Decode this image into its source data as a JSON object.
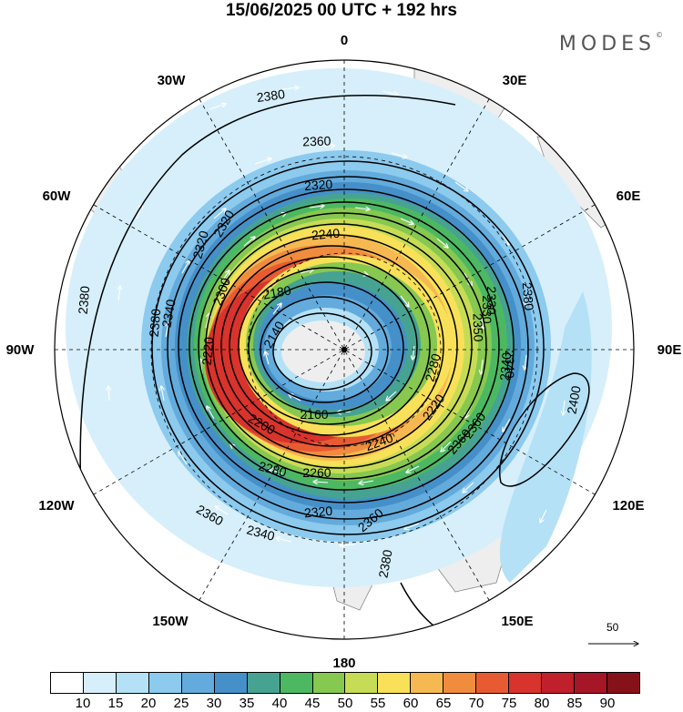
{
  "title": "15/06/2025  00 UTC  + 192 hrs",
  "brand": "MODES",
  "brand_mark": "©",
  "longitude_labels": {
    "n0": "0",
    "n30e": "30E",
    "n60e": "60E",
    "n90e": "90E",
    "n120e": "120E",
    "n150e": "150E",
    "n180": "180",
    "n150w": "150W",
    "n120w": "120W",
    "n90w": "90W",
    "n60w": "60W",
    "n30w": "30W"
  },
  "reference_vector": {
    "label": "50"
  },
  "contour_labels": [
    "2380",
    "2360",
    "2320",
    "2320",
    "2340",
    "2300",
    "2240",
    "2180",
    "2140",
    "2220",
    "2330",
    "2340",
    "2200",
    "2280",
    "2260",
    "2160",
    "2240",
    "2220",
    "2340",
    "2360",
    "2320",
    "2360",
    "2340",
    "2280",
    "2380",
    "2380",
    "2400",
    "2360",
    "2330",
    "2360",
    "2380",
    "2380",
    "2320",
    "2350"
  ],
  "colorbar": {
    "ticks": [
      "10",
      "15",
      "20",
      "25",
      "30",
      "35",
      "40",
      "45",
      "50",
      "55",
      "60",
      "65",
      "70",
      "75",
      "80",
      "85",
      "90"
    ],
    "colors": [
      "#ffffff",
      "#d6effb",
      "#b4e1f6",
      "#8ccaee",
      "#63abdc",
      "#4590c9",
      "#47a391",
      "#4cb962",
      "#86c850",
      "#c7dc55",
      "#f8e058",
      "#f6b850",
      "#f08c3e",
      "#e85b32",
      "#d8332c",
      "#c01f2c",
      "#a51726",
      "#861219"
    ]
  }
}
